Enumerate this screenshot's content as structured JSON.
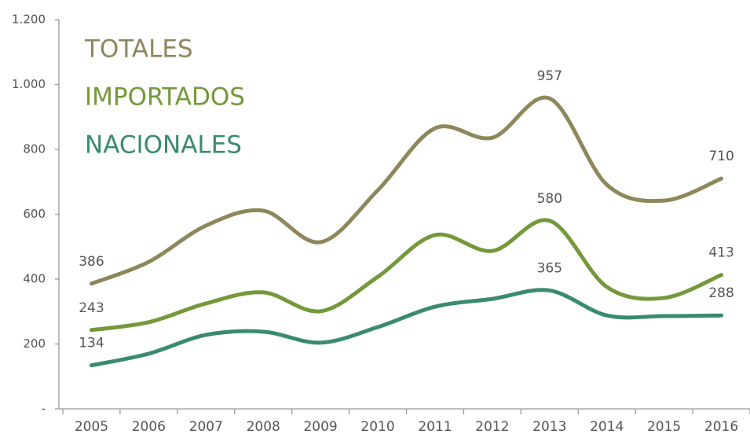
{
  "chart_data": {
    "type": "line",
    "categories": [
      "2005",
      "2006",
      "2007",
      "2008",
      "2009",
      "2010",
      "2011",
      "2012",
      "2013",
      "2014",
      "2015",
      "2016"
    ],
    "series": [
      {
        "name": "TOTALES",
        "color": "#8f875c",
        "values": [
          386,
          453,
          565,
          611,
          514,
          674,
          865,
          836,
          957,
          691,
          642,
          710
        ],
        "value_labels": [
          "386",
          null,
          null,
          null,
          null,
          null,
          null,
          null,
          "957",
          null,
          null,
          "710"
        ]
      },
      {
        "name": "IMPORTADOS",
        "color": "#73993a",
        "values": [
          243,
          267,
          325,
          359,
          301,
          407,
          536,
          487,
          580,
          376,
          342,
          413
        ],
        "value_labels": [
          "243",
          null,
          null,
          null,
          null,
          null,
          null,
          null,
          "580",
          null,
          null,
          "413"
        ]
      },
      {
        "name": "NACIONALES",
        "color": "#3a8a72",
        "values": [
          134,
          170,
          228,
          238,
          204,
          252,
          315,
          339,
          365,
          288,
          286,
          288
        ],
        "value_labels": [
          "134",
          null,
          null,
          null,
          null,
          null,
          null,
          null,
          "365",
          null,
          null,
          "288"
        ]
      }
    ],
    "ylim": [
      0,
      1200
    ],
    "yticks": [
      {
        "value": 0,
        "label": "-"
      },
      200,
      400,
      600,
      800,
      {
        "value": 1000,
        "label": "1.000"
      },
      {
        "value": 1200,
        "label": "1.200"
      }
    ]
  }
}
